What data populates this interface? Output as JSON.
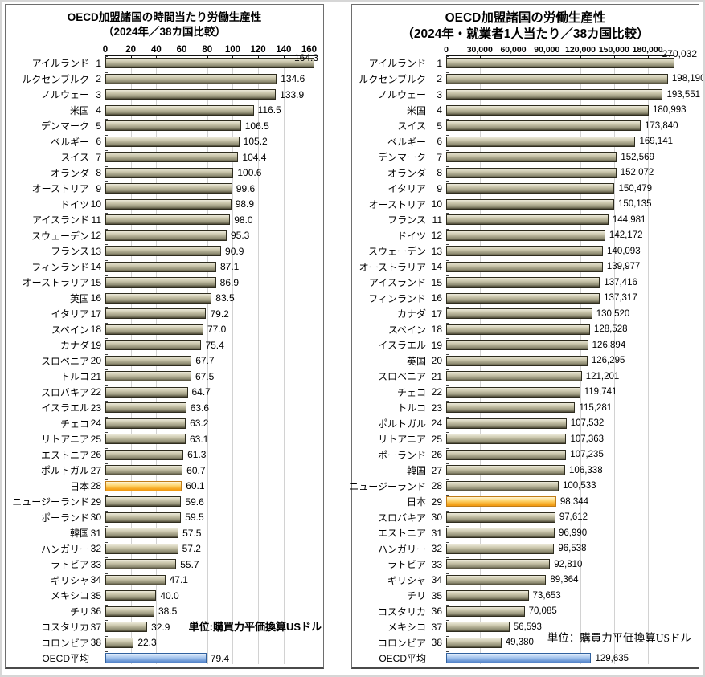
{
  "colors": {
    "default": {
      "stops": [
        "#ecead9",
        "#c8c4a9",
        "#8f8c73",
        "#4c4936"
      ],
      "border": "#2e2c1e"
    },
    "japan": {
      "stops": [
        "#fdf4d5",
        "#ffd977",
        "#f6a71f",
        "#ee9712"
      ],
      "border": "#c07c17"
    },
    "oecd": {
      "stops": [
        "#e3eefb",
        "#aecbf0",
        "#6f9bd8",
        "#5181c7"
      ],
      "border": "#30619f"
    },
    "gridline": "#d2d2d2",
    "axis_line": "#111111"
  },
  "chart_data": [
    {
      "type": "bar",
      "orientation": "horizontal",
      "title": {
        "line1": "OECD加盟諸国の時間当たり労働生産性",
        "line2": "（2024年／38カ国比較）"
      },
      "unit_note": "単位:購買力平価換算USドル",
      "top_value_label": "164.3",
      "legend": "none",
      "grid": "on",
      "axis": {
        "ticks": [
          0,
          20,
          40,
          60,
          80,
          100,
          120,
          140,
          160
        ],
        "tick_labels": [
          "0",
          "20",
          "40",
          "60",
          "80",
          "100",
          "120",
          "140",
          "160"
        ],
        "max": 166
      },
      "rows": [
        {
          "name": "アイルランド",
          "rank": "1",
          "value": 164.3,
          "value_label": "164.3",
          "highlight": "default",
          "hide_inline": true
        },
        {
          "name": "ルクセンブルク",
          "rank": "2",
          "value": 134.6,
          "value_label": "134.6",
          "highlight": "default"
        },
        {
          "name": "ノルウェー",
          "rank": "3",
          "value": 133.9,
          "value_label": "133.9",
          "highlight": "default"
        },
        {
          "name": "米国",
          "rank": "4",
          "value": 116.5,
          "value_label": "116.5",
          "highlight": "default"
        },
        {
          "name": "デンマーク",
          "rank": "5",
          "value": 106.5,
          "value_label": "106.5",
          "highlight": "default"
        },
        {
          "name": "ベルギー",
          "rank": "6",
          "value": 105.2,
          "value_label": "105.2",
          "highlight": "default"
        },
        {
          "name": "スイス",
          "rank": "7",
          "value": 104.4,
          "value_label": "104.4",
          "highlight": "default"
        },
        {
          "name": "オランダ",
          "rank": "8",
          "value": 100.6,
          "value_label": "100.6",
          "highlight": "default"
        },
        {
          "name": "オーストリア",
          "rank": "9",
          "value": 99.6,
          "value_label": "99.6",
          "highlight": "default"
        },
        {
          "name": "ドイツ",
          "rank": "10",
          "value": 98.9,
          "value_label": "98.9",
          "highlight": "default"
        },
        {
          "name": "アイスランド",
          "rank": "11",
          "value": 98.0,
          "value_label": "98.0",
          "highlight": "default"
        },
        {
          "name": "スウェーデン",
          "rank": "12",
          "value": 95.3,
          "value_label": "95.3",
          "highlight": "default"
        },
        {
          "name": "フランス",
          "rank": "13",
          "value": 90.9,
          "value_label": "90.9",
          "highlight": "default"
        },
        {
          "name": "フィンランド",
          "rank": "14",
          "value": 87.1,
          "value_label": "87.1",
          "highlight": "default"
        },
        {
          "name": "オーストラリア",
          "rank": "15",
          "value": 86.9,
          "value_label": "86.9",
          "highlight": "default"
        },
        {
          "name": "英国",
          "rank": "16",
          "value": 83.5,
          "value_label": "83.5",
          "highlight": "default"
        },
        {
          "name": "イタリア",
          "rank": "17",
          "value": 79.2,
          "value_label": "79.2",
          "highlight": "default"
        },
        {
          "name": "スペイン",
          "rank": "18",
          "value": 77.0,
          "value_label": "77.0",
          "highlight": "default"
        },
        {
          "name": "カナダ",
          "rank": "19",
          "value": 75.4,
          "value_label": "75.4",
          "highlight": "default"
        },
        {
          "name": "スロベニア",
          "rank": "20",
          "value": 67.7,
          "value_label": "67.7",
          "highlight": "default"
        },
        {
          "name": "トルコ",
          "rank": "21",
          "value": 67.5,
          "value_label": "67.5",
          "highlight": "default"
        },
        {
          "name": "スロバキア",
          "rank": "22",
          "value": 64.7,
          "value_label": "64.7",
          "highlight": "default"
        },
        {
          "name": "イスラエル",
          "rank": "23",
          "value": 63.6,
          "value_label": "63.6",
          "highlight": "default"
        },
        {
          "name": "チェコ",
          "rank": "24",
          "value": 63.2,
          "value_label": "63.2",
          "highlight": "default"
        },
        {
          "name": "リトアニア",
          "rank": "25",
          "value": 63.1,
          "value_label": "63.1",
          "highlight": "default"
        },
        {
          "name": "エストニア",
          "rank": "26",
          "value": 61.3,
          "value_label": "61.3",
          "highlight": "default"
        },
        {
          "name": "ポルトガル",
          "rank": "27",
          "value": 60.7,
          "value_label": "60.7",
          "highlight": "default"
        },
        {
          "name": "日本",
          "rank": "28",
          "value": 60.1,
          "value_label": "60.1",
          "highlight": "japan"
        },
        {
          "name": "ニュージーランド",
          "rank": "29",
          "value": 59.6,
          "value_label": "59.6",
          "highlight": "default"
        },
        {
          "name": "ポーランド",
          "rank": "30",
          "value": 59.5,
          "value_label": "59.5",
          "highlight": "default"
        },
        {
          "name": "韓国",
          "rank": "31",
          "value": 57.5,
          "value_label": "57.5",
          "highlight": "default"
        },
        {
          "name": "ハンガリー",
          "rank": "32",
          "value": 57.2,
          "value_label": "57.2",
          "highlight": "default"
        },
        {
          "name": "ラトビア",
          "rank": "33",
          "value": 55.7,
          "value_label": "55.7",
          "highlight": "default"
        },
        {
          "name": "ギリシャ",
          "rank": "34",
          "value": 47.1,
          "value_label": "47.1",
          "highlight": "default"
        },
        {
          "name": "メキシコ",
          "rank": "35",
          "value": 40.0,
          "value_label": "40.0",
          "highlight": "default"
        },
        {
          "name": "チリ",
          "rank": "36",
          "value": 38.5,
          "value_label": "38.5",
          "highlight": "default"
        },
        {
          "name": "コスタリカ",
          "rank": "37",
          "value": 32.9,
          "value_label": "32.9",
          "highlight": "default"
        },
        {
          "name": "コロンビア",
          "rank": "38",
          "value": 22.3,
          "value_label": "22.3",
          "highlight": "default"
        },
        {
          "name": "OECD平均",
          "rank": "",
          "value": 79.4,
          "value_label": "79.4",
          "highlight": "oecd"
        }
      ]
    },
    {
      "type": "bar",
      "orientation": "horizontal",
      "title": {
        "line1": "OECD加盟諸国の労働生産性",
        "line2": "（2024年・就業者1人当たり／38カ国比較）"
      },
      "unit_note": "単位：購買力平価換算USドル",
      "top_value_label": "270,032",
      "legend": "none",
      "grid": "on",
      "axis": {
        "ticks": [
          0,
          30000,
          60000,
          90000,
          120000,
          150000,
          180000
        ],
        "tick_labels": [
          "0",
          "30,000",
          "60,000",
          "90,000",
          "120,000",
          "150,000",
          "180,000"
        ],
        "max": 204000
      },
      "rows": [
        {
          "name": "アイルランド",
          "rank": "1",
          "value": 270032,
          "value_label": "270,032",
          "highlight": "default",
          "hide_inline": true
        },
        {
          "name": "ルクセンブルク",
          "rank": "2",
          "value": 198190,
          "value_label": "198,190",
          "highlight": "default"
        },
        {
          "name": "ノルウェー",
          "rank": "3",
          "value": 193551,
          "value_label": "193,551",
          "highlight": "default"
        },
        {
          "name": "米国",
          "rank": "4",
          "value": 180993,
          "value_label": "180,993",
          "highlight": "default"
        },
        {
          "name": "スイス",
          "rank": "5",
          "value": 173840,
          "value_label": "173,840",
          "highlight": "default"
        },
        {
          "name": "ベルギー",
          "rank": "6",
          "value": 169141,
          "value_label": "169,141",
          "highlight": "default"
        },
        {
          "name": "デンマーク",
          "rank": "7",
          "value": 152569,
          "value_label": "152,569",
          "highlight": "default"
        },
        {
          "name": "オランダ",
          "rank": "8",
          "value": 152072,
          "value_label": "152,072",
          "highlight": "default"
        },
        {
          "name": "イタリア",
          "rank": "9",
          "value": 150479,
          "value_label": "150,479",
          "highlight": "default"
        },
        {
          "name": "オーストリア",
          "rank": "10",
          "value": 150135,
          "value_label": "150,135",
          "highlight": "default"
        },
        {
          "name": "フランス",
          "rank": "11",
          "value": 144981,
          "value_label": "144,981",
          "highlight": "default"
        },
        {
          "name": "ドイツ",
          "rank": "12",
          "value": 142172,
          "value_label": "142,172",
          "highlight": "default"
        },
        {
          "name": "スウェーデン",
          "rank": "13",
          "value": 140093,
          "value_label": "140,093",
          "highlight": "default"
        },
        {
          "name": "オーストラリア",
          "rank": "14",
          "value": 139977,
          "value_label": "139,977",
          "highlight": "default"
        },
        {
          "name": "アイスランド",
          "rank": "15",
          "value": 137416,
          "value_label": "137,416",
          "highlight": "default"
        },
        {
          "name": "フィンランド",
          "rank": "16",
          "value": 137317,
          "value_label": "137,317",
          "highlight": "default"
        },
        {
          "name": "カナダ",
          "rank": "17",
          "value": 130520,
          "value_label": "130,520",
          "highlight": "default"
        },
        {
          "name": "スペイン",
          "rank": "18",
          "value": 128528,
          "value_label": "128,528",
          "highlight": "default"
        },
        {
          "name": "イスラエル",
          "rank": "19",
          "value": 126894,
          "value_label": "126,894",
          "highlight": "default"
        },
        {
          "name": "英国",
          "rank": "20",
          "value": 126295,
          "value_label": "126,295",
          "highlight": "default"
        },
        {
          "name": "スロベニア",
          "rank": "21",
          "value": 121201,
          "value_label": "121,201",
          "highlight": "default"
        },
        {
          "name": "チェコ",
          "rank": "22",
          "value": 119741,
          "value_label": "119,741",
          "highlight": "default"
        },
        {
          "name": "トルコ",
          "rank": "23",
          "value": 115281,
          "value_label": "115,281",
          "highlight": "default"
        },
        {
          "name": "ポルトガル",
          "rank": "24",
          "value": 107532,
          "value_label": "107,532",
          "highlight": "default"
        },
        {
          "name": "リトアニア",
          "rank": "25",
          "value": 107363,
          "value_label": "107,363",
          "highlight": "default"
        },
        {
          "name": "ポーランド",
          "rank": "26",
          "value": 107235,
          "value_label": "107,235",
          "highlight": "default"
        },
        {
          "name": "韓国",
          "rank": "27",
          "value": 106338,
          "value_label": "106,338",
          "highlight": "default"
        },
        {
          "name": "ニュージーランド",
          "rank": "28",
          "value": 100533,
          "value_label": "100,533",
          "highlight": "default"
        },
        {
          "name": "日本",
          "rank": "29",
          "value": 98344,
          "value_label": "98,344",
          "highlight": "japan"
        },
        {
          "name": "スロバキア",
          "rank": "30",
          "value": 97612,
          "value_label": "97,612",
          "highlight": "default"
        },
        {
          "name": "エストニア",
          "rank": "31",
          "value": 96990,
          "value_label": "96,990",
          "highlight": "default"
        },
        {
          "name": "ハンガリー",
          "rank": "32",
          "value": 96538,
          "value_label": "96,538",
          "highlight": "default"
        },
        {
          "name": "ラトビア",
          "rank": "33",
          "value": 92810,
          "value_label": "92,810",
          "highlight": "default"
        },
        {
          "name": "ギリシャ",
          "rank": "34",
          "value": 89364,
          "value_label": "89,364",
          "highlight": "default"
        },
        {
          "name": "チリ",
          "rank": "35",
          "value": 73653,
          "value_label": "73,653",
          "highlight": "default"
        },
        {
          "name": "コスタリカ",
          "rank": "36",
          "value": 70085,
          "value_label": "70,085",
          "highlight": "default"
        },
        {
          "name": "メキシコ",
          "rank": "37",
          "value": 56593,
          "value_label": "56,593",
          "highlight": "default"
        },
        {
          "name": "コロンビア",
          "rank": "38",
          "value": 49380,
          "value_label": "49,380",
          "highlight": "default"
        },
        {
          "name": "OECD平均",
          "rank": "",
          "value": 129635,
          "value_label": "129,635",
          "highlight": "oecd"
        }
      ]
    }
  ]
}
